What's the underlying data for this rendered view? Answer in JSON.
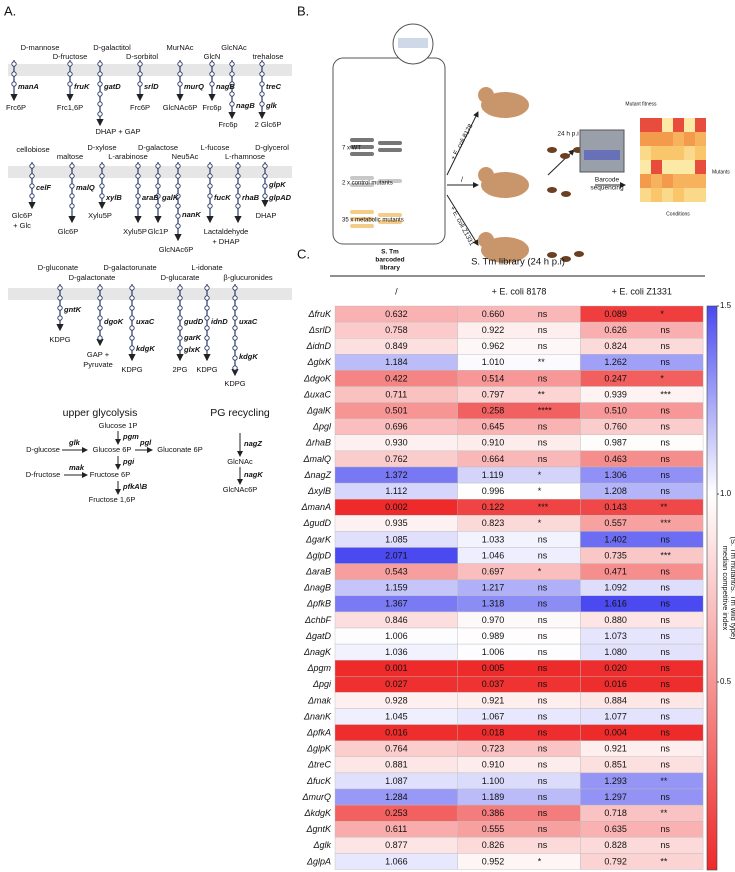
{
  "panel_a": {
    "label": "A.",
    "substrates": [
      "D-mannose",
      "D-fructose",
      "D-galactitol",
      "D-sorbitol",
      "MurNAc",
      "GlcN",
      "GlcNAc",
      "trehalose",
      "cellobiose",
      "maltose",
      "D-xylose",
      "L-arabinose",
      "D-galactose",
      "Neu5Ac",
      "L-fucose",
      "L-rhamnose",
      "D-glycerol",
      "D-gluconate",
      "D-galactonate",
      "D-galactorunate",
      "D-glucarate",
      "L-idonate",
      "β-glucuronides",
      "D-glucose",
      "D-fructose"
    ],
    "genes": [
      "manA",
      "fruK",
      "gatD",
      "srlD",
      "murQ",
      "nagB",
      "nagB",
      "treC",
      "glk",
      "celF",
      "malQ",
      "xylB",
      "araB",
      "galK",
      "nanK",
      "fucK",
      "rhaB",
      "glpK",
      "glpAD",
      "gntK",
      "dgoK",
      "uxaC",
      "kdgK",
      "gudD",
      "garK",
      "glxK",
      "idnD",
      "uxaC",
      "kdgK",
      "pgm",
      "glk",
      "pgl",
      "pgi",
      "mak",
      "pfkA\\B",
      "nagZ",
      "nagK"
    ],
    "products": [
      "Frc6P",
      "Frc1,6P",
      "Frc6P",
      "GlcNAc6P",
      "Frc6p",
      "Frc6p",
      "2 Glc6P",
      "DHAP + GAP",
      "Glc6P",
      "+ Glc",
      "Glc6P",
      "Xylu5P",
      "Xylu5P",
      "Glc1P",
      "GlcNAc6P",
      "Lactaldehyde",
      "+ DHAP",
      "DHAP",
      "KDPG",
      "GAP +",
      "Pyruvate",
      "KDPG",
      "2PG",
      "KDPG",
      "KDPG",
      "Glucose 1P",
      "Glucose 6P",
      "Gluconate 6P",
      "Fructose 6P",
      "Fructose 1,6P",
      "GlcNAc",
      "GlcNAc6P"
    ],
    "headings": [
      "upper glycolysis",
      "PG recycling"
    ]
  },
  "panel_b": {
    "label": "B.",
    "texts": [
      "7 x WT",
      "2 x control mutants",
      "35 x metabolic mutants",
      "S. Tm",
      "barcoded",
      "library",
      "+ E. coli 8178",
      "/",
      "+ E. coli Z1331",
      "24 h p.i",
      "Barcode",
      "sequencing",
      "Mutant fitness",
      "Mutants",
      "Conditions"
    ]
  },
  "chart_data": {
    "type": "heatmap",
    "label": "C.",
    "title": "S. Tm library (24 h p.i)",
    "rows": [
      "ΔfruK",
      "ΔsrlD",
      "ΔidnD",
      "ΔglxK",
      "ΔdgoK",
      "ΔuxaC",
      "ΔgalK",
      "Δpgl",
      "ΔrhaB",
      "ΔmalQ",
      "ΔnagZ",
      "ΔxylB",
      "ΔmanA",
      "ΔgudD",
      "ΔgarK",
      "ΔglpD",
      "ΔaraB",
      "ΔnagB",
      "ΔpfkB",
      "ΔchbF",
      "ΔgatD",
      "ΔnagK",
      "Δpgm",
      "Δpgi",
      "Δmak",
      "ΔnanK",
      "ΔpfkA",
      "ΔglpK",
      "ΔtreC",
      "ΔfucK",
      "ΔmurQ",
      "ΔkdgK",
      "ΔgntK",
      "Δglk",
      "ΔglpA"
    ],
    "series": [
      {
        "name": "/",
        "values": [
          0.632,
          0.758,
          0.849,
          1.184,
          0.422,
          0.711,
          0.501,
          0.696,
          0.93,
          0.762,
          1.372,
          1.112,
          0.002,
          0.935,
          1.085,
          2.071,
          0.543,
          1.159,
          1.367,
          0.846,
          1.006,
          1.036,
          0.001,
          0.027,
          0.928,
          1.045,
          0.016,
          0.764,
          0.881,
          1.087,
          1.284,
          0.253,
          0.611,
          0.877,
          1.066
        ],
        "value_labels": [
          "0.632",
          "0.758",
          "0.849",
          "1.184",
          "0.422",
          "0.711",
          "0.501",
          "0.696",
          "0.930",
          "0.762",
          "1.372",
          "1.112",
          "0.002",
          "0.935",
          "1.085",
          "2.071",
          "0.543",
          "1.159",
          "1.367",
          "0.846",
          "1.006",
          "1.036",
          "0.001",
          "0.027",
          "0.928",
          "1.045",
          "0.016",
          "0.764",
          "0.881",
          "1.087",
          "1.284",
          "0.253",
          "0.611",
          "0.877",
          "1.066"
        ]
      },
      {
        "name": "+ E. coli 8178",
        "values": [
          0.66,
          0.922,
          0.962,
          1.01,
          0.514,
          0.797,
          0.258,
          0.645,
          0.91,
          0.664,
          1.119,
          0.996,
          0.122,
          0.823,
          1.033,
          1.046,
          0.697,
          1.217,
          1.318,
          0.97,
          0.989,
          1.006,
          0.005,
          0.037,
          0.921,
          1.067,
          0.018,
          0.723,
          0.91,
          1.1,
          1.189,
          0.386,
          0.555,
          0.826,
          0.952
        ],
        "value_labels": [
          "0.660",
          "0.922",
          "0.962",
          "1.010",
          "0.514",
          "0.797",
          "0.258",
          "0.645",
          "0.910",
          "0.664",
          "1.119",
          "0.996",
          "0.122",
          "0.823",
          "1.033",
          "1.046",
          "0.697",
          "1.217",
          "1.318",
          "0.970",
          "0.989",
          "1.006",
          "0.005",
          "0.037",
          "0.921",
          "1.067",
          "0.018",
          "0.723",
          "0.910",
          "1.100",
          "1.189",
          "0.386",
          "0.555",
          "0.826",
          "0.952"
        ],
        "significance": [
          "ns",
          "ns",
          "ns",
          "**",
          "ns",
          "**",
          "****",
          "ns",
          "ns",
          "ns",
          "*",
          "*",
          "***",
          "*",
          "ns",
          "ns",
          "*",
          "ns",
          "ns",
          "ns",
          "ns",
          "ns",
          "ns",
          "ns",
          "ns",
          "ns",
          "ns",
          "ns",
          "ns",
          "ns",
          "ns",
          "ns",
          "ns",
          "ns",
          "*"
        ]
      },
      {
        "name": "+ E. coli Z1331",
        "values": [
          0.089,
          0.626,
          0.824,
          1.262,
          0.247,
          0.939,
          0.51,
          0.76,
          0.987,
          0.463,
          1.306,
          1.208,
          0.143,
          0.557,
          1.402,
          0.735,
          0.471,
          1.092,
          1.616,
          0.88,
          1.073,
          1.08,
          0.02,
          0.016,
          0.884,
          1.077,
          0.004,
          0.921,
          0.851,
          1.293,
          1.297,
          0.718,
          0.635,
          0.828,
          0.792
        ],
        "value_labels": [
          "0.089",
          "0.626",
          "0.824",
          "1.262",
          "0.247",
          "0.939",
          "0.510",
          "0.760",
          "0.987",
          "0.463",
          "1.306",
          "1.208",
          "0.143",
          "0.557",
          "1.402",
          "0.735",
          "0.471",
          "1.092",
          "1.616",
          "0.880",
          "1.073",
          "1.080",
          "0.020",
          "0.016",
          "0.884",
          "1.077",
          "0.004",
          "0.921",
          "0.851",
          "1.293",
          "1.297",
          "0.718",
          "0.635",
          "0.828",
          "0.792"
        ],
        "significance": [
          "*",
          "ns",
          "ns",
          "ns",
          "*",
          "***",
          "ns",
          "ns",
          "ns",
          "ns",
          "ns",
          "ns",
          "**",
          "***",
          "ns",
          "***",
          "ns",
          "ns",
          "ns",
          "ns",
          "ns",
          "ns",
          "ns",
          "ns",
          "ns",
          "ns",
          "ns",
          "ns",
          "ns",
          "**",
          "ns",
          "**",
          "ns",
          "ns",
          "**"
        ]
      }
    ],
    "zlim": [
      0,
      1.5
    ],
    "zticks": [
      0.5,
      {
        "value": 1,
        "label": "1.0"
      },
      1.5
    ],
    "colors": [
      "#ee2a2a",
      "#ffffff",
      "#4a4af0"
    ],
    "colorbar_label": [
      "median competitive index",
      "(S. Tm mutant/S. Tm wild type)"
    ]
  }
}
